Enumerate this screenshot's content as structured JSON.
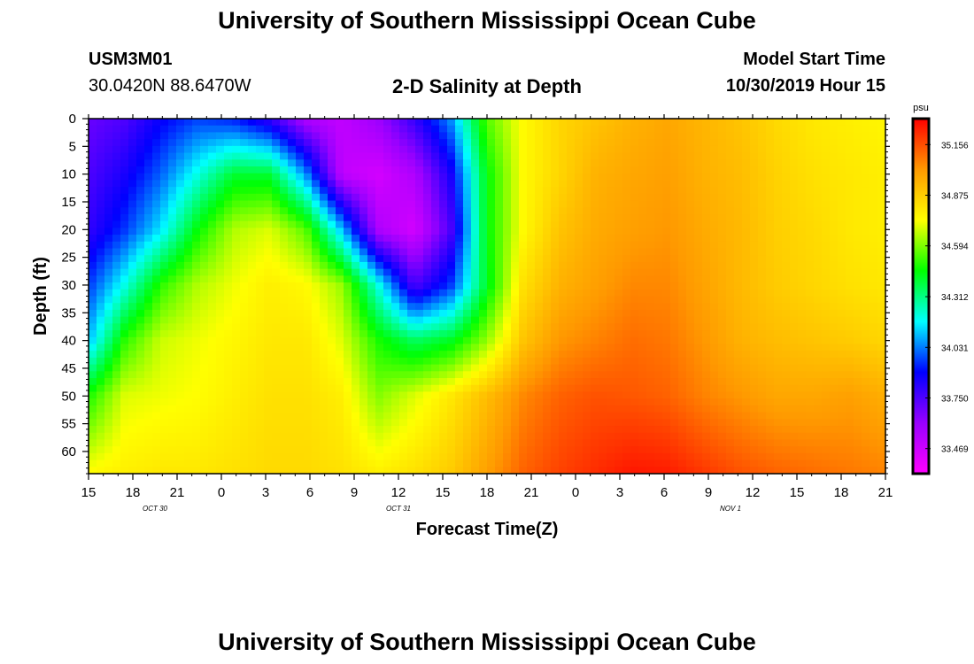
{
  "header": {
    "title": "University of Southern Mississippi Ocean Cube",
    "station_id": "USM3M01",
    "station_coords": "30.0420N 88.6470W",
    "plot_title": "2-D Salinity at Depth",
    "model_start_label": "Model Start Time",
    "model_start_value": "10/30/2019 Hour 15"
  },
  "footer": {
    "title": "University of Southern Mississippi Ocean Cube"
  },
  "chart_data": {
    "type": "heatmap",
    "title": "2-D Salinity at Depth",
    "xlabel": "Forecast Time(Z)",
    "ylabel": "Depth (ft)",
    "x_ticks": [
      "15",
      "18",
      "21",
      "0",
      "3",
      "6",
      "9",
      "12",
      "15",
      "18",
      "21",
      "0",
      "3",
      "6",
      "9",
      "12",
      "15",
      "18",
      "21"
    ],
    "x_date_labels": [
      {
        "text": "OCT 30",
        "tick_index": 1.5
      },
      {
        "text": "OCT 31",
        "tick_index": 7
      },
      {
        "text": "NOV 1",
        "tick_index": 14.5
      }
    ],
    "forecast_hours": [
      0,
      3,
      6,
      9,
      12,
      15,
      18,
      21,
      24,
      27,
      30,
      33,
      36,
      39,
      42,
      45,
      48,
      51,
      54
    ],
    "y_ticks": [
      0,
      5,
      10,
      15,
      20,
      25,
      30,
      35,
      40,
      45,
      50,
      55,
      60
    ],
    "ylim": [
      0,
      64
    ],
    "x_range_hours": [
      0,
      54
    ],
    "colorbar": {
      "unit": "psu",
      "tick_values": [
        "35.156",
        "34.875",
        "34.594",
        "34.312",
        "34.031",
        "33.750",
        "33.469"
      ],
      "range": [
        33.33,
        35.3
      ],
      "stops": [
        "#ff00ff",
        "#9900ff",
        "#0000ff",
        "#00ffff",
        "#00ff00",
        "#ffff00",
        "#ff9900",
        "#ff0000"
      ]
    },
    "sample_depths_ft": [
      0,
      10,
      20,
      30,
      40,
      50,
      64
    ],
    "salinity_psu_rows": [
      [
        33.7,
        33.75,
        33.88,
        33.96,
        33.92,
        33.8,
        33.55,
        33.5,
        33.6,
        33.8,
        34.05,
        34.55,
        34.75,
        34.85,
        34.9,
        34.95,
        34.98,
        34.94,
        34.9,
        34.84,
        34.8,
        34.78,
        34.76
      ],
      [
        33.75,
        33.85,
        34.0,
        34.2,
        34.4,
        34.4,
        34.05,
        33.5,
        33.45,
        33.55,
        33.85,
        34.45,
        34.75,
        34.85,
        34.95,
        34.98,
        35.0,
        34.95,
        34.92,
        34.86,
        34.82,
        34.8,
        34.78
      ],
      [
        33.8,
        33.95,
        34.15,
        34.45,
        34.65,
        34.7,
        34.55,
        34.1,
        33.55,
        33.45,
        33.75,
        34.45,
        34.75,
        34.9,
        34.97,
        35.0,
        35.02,
        34.97,
        34.93,
        34.87,
        34.84,
        34.8,
        34.78
      ],
      [
        33.95,
        34.2,
        34.5,
        34.65,
        34.72,
        34.78,
        34.75,
        34.62,
        34.2,
        33.75,
        33.95,
        34.42,
        34.82,
        34.95,
        35.0,
        35.05,
        35.05,
        34.99,
        34.93,
        34.88,
        34.85,
        34.82,
        34.8
      ],
      [
        34.1,
        34.5,
        34.68,
        34.72,
        34.76,
        34.8,
        34.8,
        34.7,
        34.48,
        34.35,
        34.42,
        34.62,
        34.9,
        35.02,
        35.06,
        35.1,
        35.08,
        35.02,
        34.95,
        34.92,
        34.9,
        34.88,
        34.85
      ],
      [
        34.48,
        34.7,
        34.72,
        34.74,
        34.78,
        34.82,
        34.82,
        34.78,
        34.6,
        34.7,
        34.8,
        34.92,
        35.05,
        35.12,
        35.15,
        35.14,
        35.12,
        35.06,
        35.02,
        34.98,
        34.98,
        35.0,
        34.96
      ],
      [
        34.75,
        34.78,
        34.8,
        34.8,
        34.82,
        34.84,
        34.84,
        34.82,
        34.78,
        34.82,
        34.88,
        35.0,
        35.12,
        35.18,
        35.22,
        35.26,
        35.25,
        35.2,
        35.15,
        35.12,
        35.1,
        35.08,
        35.06
      ]
    ]
  }
}
